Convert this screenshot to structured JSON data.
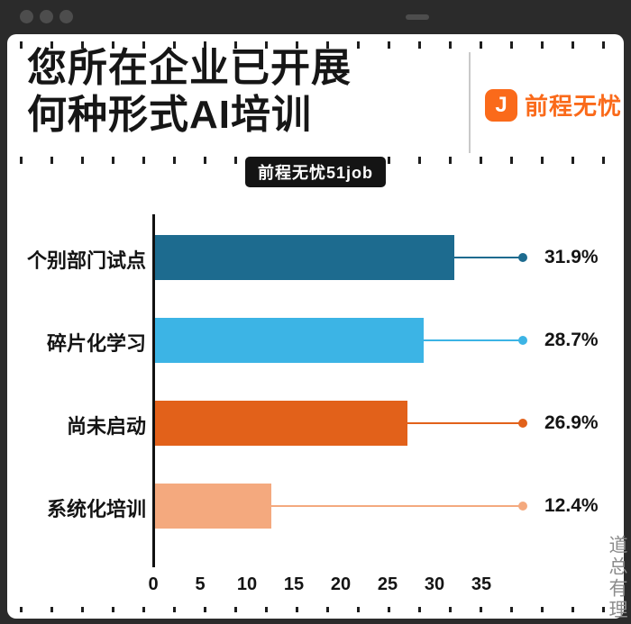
{
  "window": {
    "dot_count": 3
  },
  "header": {
    "title_line1": "您所在企业已开展",
    "title_line2": "何种形式AI培训",
    "brand_name": "前程无忧",
    "brand_icon_glyph": "J",
    "badge": "前程无忧51job"
  },
  "watermark": "道总有理",
  "chart_data": {
    "type": "bar",
    "orientation": "horizontal",
    "title": "您所在企业已开展何种形式AI培训",
    "source": "前程无忧51job",
    "categories": [
      "个别部门试点",
      "碎片化学习",
      "尚未启动",
      "系统化培训"
    ],
    "values": [
      31.9,
      28.7,
      26.9,
      12.4
    ],
    "value_labels": [
      "31.9%",
      "28.7%",
      "26.9%",
      "12.4%"
    ],
    "bar_colors": [
      "#1d6b8f",
      "#3cb4e5",
      "#e2611a",
      "#f4a97e"
    ],
    "xlim": [
      0,
      35
    ],
    "x_ticks": [
      0,
      5,
      10,
      15,
      20,
      25,
      30,
      35
    ],
    "grid": false,
    "legend": false
  }
}
